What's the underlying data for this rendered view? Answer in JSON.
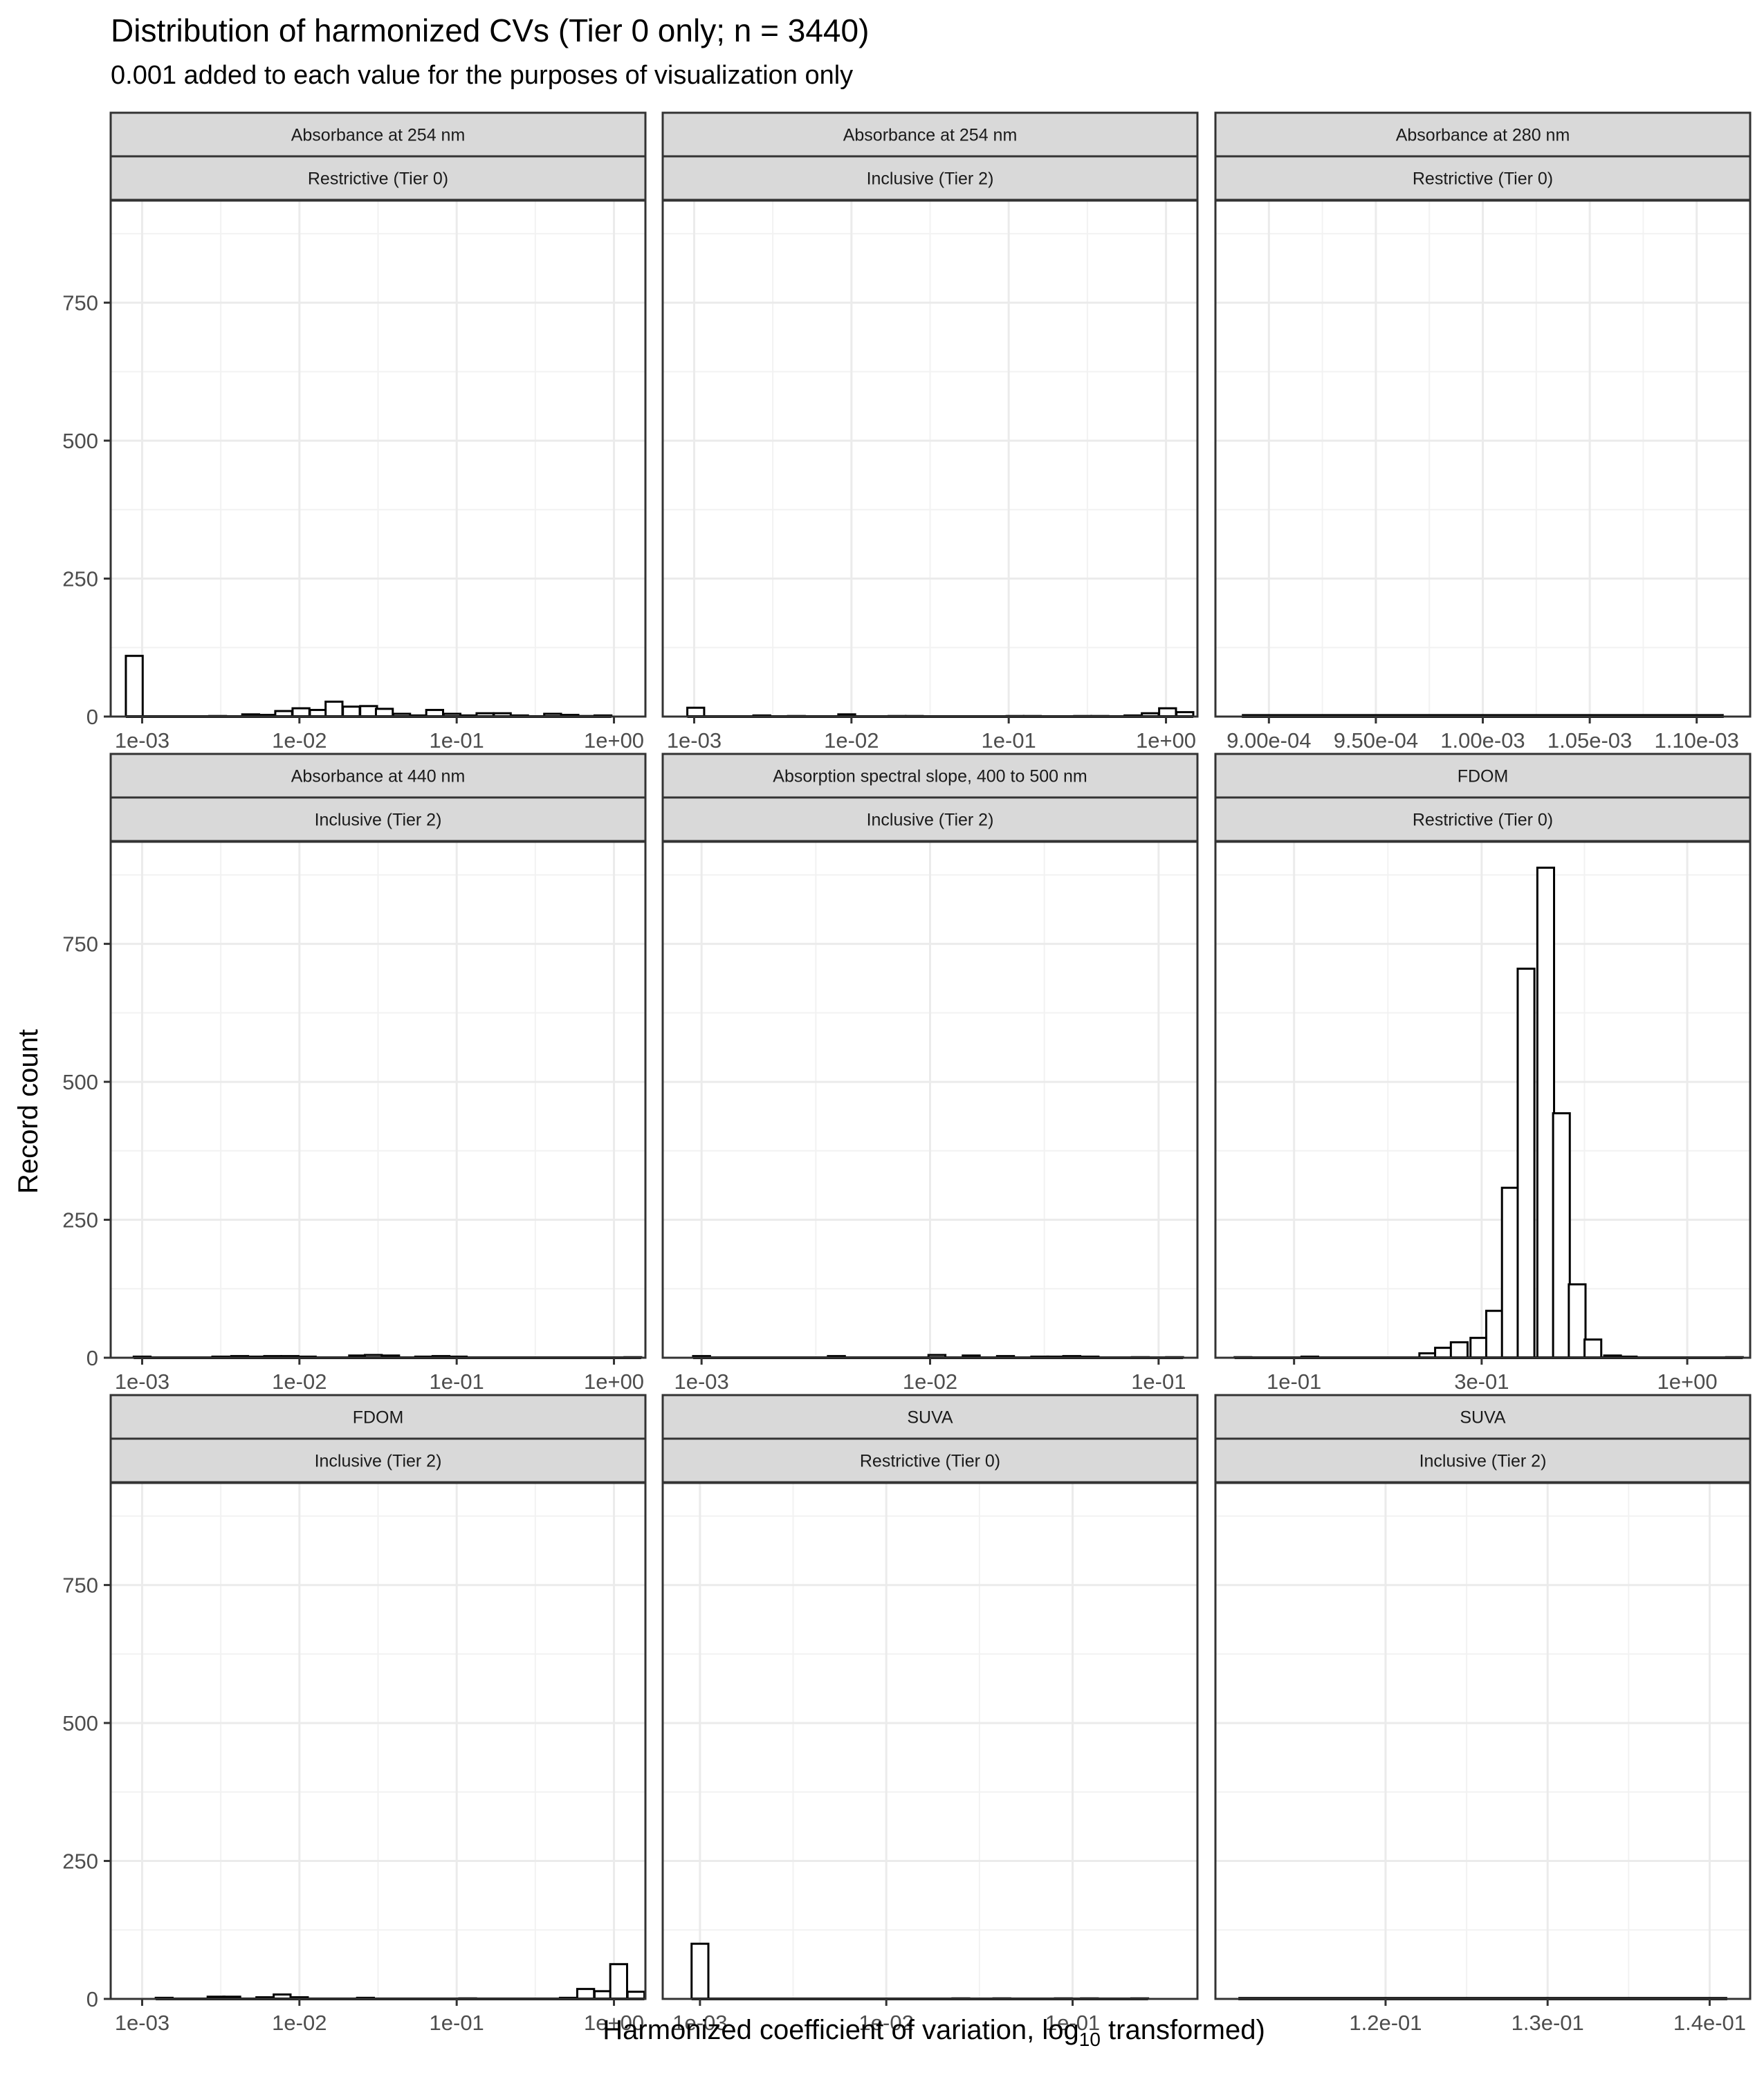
{
  "chart_data": {
    "type": "histogram",
    "title": "Distribution of harmonized CVs (Tier 0 only; n = 3440)",
    "subtitle": "0.001 added to each value for the purposes of visualization only",
    "xlabel": "Harmonized coefficient of variation,  log",
    "xlabel_subscript": "10",
    "xlabel_suffix": " transformed)",
    "ylabel": "Record count",
    "y_scale": "linear",
    "x_scale": "log10 (free per panel)",
    "ylim": [
      0,
      935
    ],
    "y_ticks": [
      0,
      250,
      500,
      750
    ],
    "y_tick_labels": [
      "0",
      "250",
      "500",
      "750"
    ],
    "grid": true,
    "theme": "black-and-white",
    "bar_fill": "#ffffff",
    "bar_outline": "#000000",
    "strip_fill": "#d9d9d9",
    "panels": [
      {
        "strip": [
          "Absorbance at 254 nm",
          "Restrictive (Tier 0)"
        ],
        "xlim_log10": [
          -3.2,
          0.2
        ],
        "x_ticks_log10": [
          -3,
          -2,
          -1,
          0
        ],
        "x_tick_labels": [
          "1e-03",
          "1e-02",
          "1e-01",
          "1e+00"
        ],
        "bins": [
          {
            "x_log10": -3.05,
            "width": 0.107,
            "count": 110
          },
          {
            "x_log10": -2.52,
            "width": 0.107,
            "count": 1
          },
          {
            "x_log10": -2.31,
            "width": 0.107,
            "count": 4
          },
          {
            "x_log10": -2.2,
            "width": 0.107,
            "count": 3
          },
          {
            "x_log10": -2.1,
            "width": 0.107,
            "count": 10
          },
          {
            "x_log10": -1.99,
            "width": 0.107,
            "count": 15
          },
          {
            "x_log10": -1.88,
            "width": 0.107,
            "count": 12
          },
          {
            "x_log10": -1.78,
            "width": 0.107,
            "count": 27
          },
          {
            "x_log10": -1.67,
            "width": 0.107,
            "count": 18
          },
          {
            "x_log10": -1.56,
            "width": 0.107,
            "count": 19
          },
          {
            "x_log10": -1.46,
            "width": 0.107,
            "count": 14
          },
          {
            "x_log10": -1.35,
            "width": 0.107,
            "count": 5
          },
          {
            "x_log10": -1.24,
            "width": 0.107,
            "count": 2
          },
          {
            "x_log10": -1.14,
            "width": 0.107,
            "count": 12
          },
          {
            "x_log10": -1.03,
            "width": 0.107,
            "count": 5
          },
          {
            "x_log10": -0.92,
            "width": 0.107,
            "count": 2
          },
          {
            "x_log10": -0.82,
            "width": 0.107,
            "count": 6
          },
          {
            "x_log10": -0.71,
            "width": 0.107,
            "count": 6
          },
          {
            "x_log10": -0.6,
            "width": 0.107,
            "count": 2
          },
          {
            "x_log10": -0.39,
            "width": 0.107,
            "count": 5
          },
          {
            "x_log10": -0.28,
            "width": 0.107,
            "count": 3
          },
          {
            "x_log10": -0.18,
            "width": 0.107,
            "count": 1
          },
          {
            "x_log10": -0.07,
            "width": 0.107,
            "count": 2
          }
        ]
      },
      {
        "strip": [
          "Absorbance at 254 nm",
          "Inclusive (Tier 2)"
        ],
        "xlim_log10": [
          -3.2,
          0.2
        ],
        "x_ticks_log10": [
          -3,
          -2,
          -1,
          0
        ],
        "x_tick_labels": [
          "1e-03",
          "1e-02",
          "1e-01",
          "1e+00"
        ],
        "bins": [
          {
            "x_log10": -2.99,
            "width": 0.107,
            "count": 16
          },
          {
            "x_log10": -2.57,
            "width": 0.107,
            "count": 2
          },
          {
            "x_log10": -2.35,
            "width": 0.107,
            "count": 1
          },
          {
            "x_log10": -2.03,
            "width": 0.107,
            "count": 4
          },
          {
            "x_log10": -1.71,
            "width": 0.107,
            "count": 1
          },
          {
            "x_log10": -1.6,
            "width": 0.107,
            "count": 1
          },
          {
            "x_log10": -0.96,
            "width": 0.107,
            "count": 1
          },
          {
            "x_log10": -0.85,
            "width": 0.107,
            "count": 1
          },
          {
            "x_log10": -0.53,
            "width": 0.107,
            "count": 1
          },
          {
            "x_log10": -0.42,
            "width": 0.107,
            "count": 1
          },
          {
            "x_log10": -0.21,
            "width": 0.107,
            "count": 2
          },
          {
            "x_log10": -0.1,
            "width": 0.107,
            "count": 6
          },
          {
            "x_log10": 0.01,
            "width": 0.107,
            "count": 15
          },
          {
            "x_log10": 0.12,
            "width": 0.107,
            "count": 8
          }
        ]
      },
      {
        "strip": [
          "Absorbance at 280 nm",
          "Restrictive (Tier 0)"
        ],
        "xlim_linear": [
          0.000875,
          0.001125
        ],
        "x_ticks_linear": [
          0.0009,
          0.00095,
          0.001,
          0.00105,
          0.0011
        ],
        "x_tick_labels": [
          "9.00e-04",
          "9.50e-04",
          "1.00e-03",
          "1.05e-03",
          "1.10e-03"
        ],
        "flat_line_from": 0.000888,
        "flat_line_to": 0.001112,
        "bins": [
          {
            "x_linear": 0.001,
            "count": 2
          }
        ]
      },
      {
        "strip": [
          "Absorbance at 440 nm",
          "Inclusive (Tier 2)"
        ],
        "xlim_log10": [
          -3.2,
          0.2
        ],
        "x_ticks_log10": [
          -3,
          -2,
          -1,
          0
        ],
        "x_tick_labels": [
          "1e-03",
          "1e-02",
          "1e-01",
          "1e+00"
        ],
        "bins": [
          {
            "x_log10": -3.0,
            "width": 0.107,
            "count": 2
          },
          {
            "x_log10": -2.5,
            "width": 0.107,
            "count": 2
          },
          {
            "x_log10": -2.38,
            "width": 0.107,
            "count": 3
          },
          {
            "x_log10": -2.27,
            "width": 0.107,
            "count": 2
          },
          {
            "x_log10": -2.17,
            "width": 0.107,
            "count": 3
          },
          {
            "x_log10": -2.06,
            "width": 0.107,
            "count": 3
          },
          {
            "x_log10": -1.95,
            "width": 0.107,
            "count": 2
          },
          {
            "x_log10": -1.63,
            "width": 0.107,
            "count": 4
          },
          {
            "x_log10": -1.53,
            "width": 0.107,
            "count": 5
          },
          {
            "x_log10": -1.42,
            "width": 0.107,
            "count": 4
          },
          {
            "x_log10": -1.21,
            "width": 0.107,
            "count": 2
          },
          {
            "x_log10": -1.1,
            "width": 0.107,
            "count": 3
          },
          {
            "x_log10": -0.99,
            "width": 0.107,
            "count": 2
          },
          {
            "x_log10": 0.12,
            "width": 0.107,
            "count": 1
          }
        ]
      },
      {
        "strip": [
          "Absorption spectral slope, 400 to 500 nm",
          "Inclusive (Tier 2)"
        ],
        "xlim_log10": [
          -3.17,
          -0.83
        ],
        "x_ticks_log10": [
          -3,
          -2,
          -1
        ],
        "x_tick_labels": [
          "1e-03",
          "1e-02",
          "1e-01"
        ],
        "bins": [
          {
            "x_log10": -3.0,
            "width": 0.074,
            "count": 3
          },
          {
            "x_log10": -2.41,
            "width": 0.074,
            "count": 3
          },
          {
            "x_log10": -1.97,
            "width": 0.074,
            "count": 5
          },
          {
            "x_log10": -1.82,
            "width": 0.074,
            "count": 4
          },
          {
            "x_log10": -1.67,
            "width": 0.074,
            "count": 3
          },
          {
            "x_log10": -1.52,
            "width": 0.074,
            "count": 2
          },
          {
            "x_log10": -1.45,
            "width": 0.074,
            "count": 2
          },
          {
            "x_log10": -1.38,
            "width": 0.074,
            "count": 3
          },
          {
            "x_log10": -1.3,
            "width": 0.074,
            "count": 2
          },
          {
            "x_log10": -1.08,
            "width": 0.074,
            "count": 1
          },
          {
            "x_log10": -0.93,
            "width": 0.074,
            "count": 1
          }
        ]
      },
      {
        "strip": [
          "FDOM",
          "Restrictive (Tier 0)"
        ],
        "xlim_log10": [
          -1.2,
          0.16
        ],
        "x_ticks_log10": [
          -1,
          -0.5229,
          0
        ],
        "x_tick_labels": [
          "1e-01",
          "3e-01",
          "1e+00"
        ],
        "bins": [
          {
            "x_log10": -1.13,
            "width": 0.0425,
            "count": 1
          },
          {
            "x_log10": -0.96,
            "width": 0.0425,
            "count": 2
          },
          {
            "x_log10": -0.66,
            "width": 0.0425,
            "count": 8
          },
          {
            "x_log10": -0.62,
            "width": 0.0425,
            "count": 18
          },
          {
            "x_log10": -0.58,
            "width": 0.0425,
            "count": 28
          },
          {
            "x_log10": -0.53,
            "width": 0.0425,
            "count": 36
          },
          {
            "x_log10": -0.49,
            "width": 0.0425,
            "count": 85
          },
          {
            "x_log10": -0.45,
            "width": 0.0425,
            "count": 308
          },
          {
            "x_log10": -0.41,
            "width": 0.0425,
            "count": 705
          },
          {
            "x_log10": -0.36,
            "width": 0.0425,
            "count": 888
          },
          {
            "x_log10": -0.32,
            "width": 0.0425,
            "count": 443
          },
          {
            "x_log10": -0.28,
            "width": 0.0425,
            "count": 133
          },
          {
            "x_log10": -0.24,
            "width": 0.0425,
            "count": 33
          },
          {
            "x_log10": -0.19,
            "width": 0.0425,
            "count": 4
          },
          {
            "x_log10": -0.15,
            "width": 0.0425,
            "count": 2
          },
          {
            "x_log10": 0.12,
            "width": 0.0425,
            "count": 1
          }
        ]
      },
      {
        "strip": [
          "FDOM",
          "Inclusive (Tier 2)"
        ],
        "xlim_log10": [
          -3.2,
          0.2
        ],
        "x_ticks_log10": [
          -3,
          -2,
          -1,
          0
        ],
        "x_tick_labels": [
          "1e-03",
          "1e-02",
          "1e-01",
          "1e+00"
        ],
        "bins": [
          {
            "x_log10": -2.86,
            "width": 0.107,
            "count": 2
          },
          {
            "x_log10": -2.53,
            "width": 0.107,
            "count": 4
          },
          {
            "x_log10": -2.43,
            "width": 0.107,
            "count": 4
          },
          {
            "x_log10": -2.22,
            "width": 0.107,
            "count": 3
          },
          {
            "x_log10": -2.11,
            "width": 0.107,
            "count": 8
          },
          {
            "x_log10": -2.0,
            "width": 0.107,
            "count": 3
          },
          {
            "x_log10": -1.58,
            "width": 0.107,
            "count": 2
          },
          {
            "x_log10": -0.93,
            "width": 0.107,
            "count": 1
          },
          {
            "x_log10": -0.29,
            "width": 0.107,
            "count": 2
          },
          {
            "x_log10": -0.18,
            "width": 0.107,
            "count": 18
          },
          {
            "x_log10": -0.07,
            "width": 0.107,
            "count": 14
          },
          {
            "x_log10": 0.03,
            "width": 0.107,
            "count": 63
          },
          {
            "x_log10": 0.14,
            "width": 0.107,
            "count": 13
          }
        ]
      },
      {
        "strip": [
          "SUVA",
          "Restrictive (Tier 0)"
        ],
        "xlim_log10": [
          -3.2,
          -0.33
        ],
        "x_ticks_log10": [
          -3,
          -2,
          -1
        ],
        "x_tick_labels": [
          "1e-03",
          "1e-02",
          "1e-01"
        ],
        "bins": [
          {
            "x_log10": -3.0,
            "width": 0.09,
            "count": 100
          },
          {
            "x_log10": -1.6,
            "width": 0.09,
            "count": 1
          },
          {
            "x_log10": -1.38,
            "width": 0.09,
            "count": 1
          },
          {
            "x_log10": -1.05,
            "width": 0.09,
            "count": 1
          },
          {
            "x_log10": -0.91,
            "width": 0.09,
            "count": 1
          },
          {
            "x_log10": -0.64,
            "width": 0.09,
            "count": 1
          }
        ]
      },
      {
        "strip": [
          "SUVA",
          "Inclusive (Tier 2)"
        ],
        "xlim_linear": [
          0.1095,
          0.1425
        ],
        "x_ticks_linear": [
          0.12,
          0.13,
          0.14
        ],
        "x_tick_labels": [
          "1.2e-01",
          "1.3e-01",
          "1.4e-01"
        ],
        "flat_line_from": 0.111,
        "flat_line_to": 0.141,
        "bins": [
          {
            "x_linear": 0.126,
            "count": 1
          }
        ]
      }
    ]
  }
}
